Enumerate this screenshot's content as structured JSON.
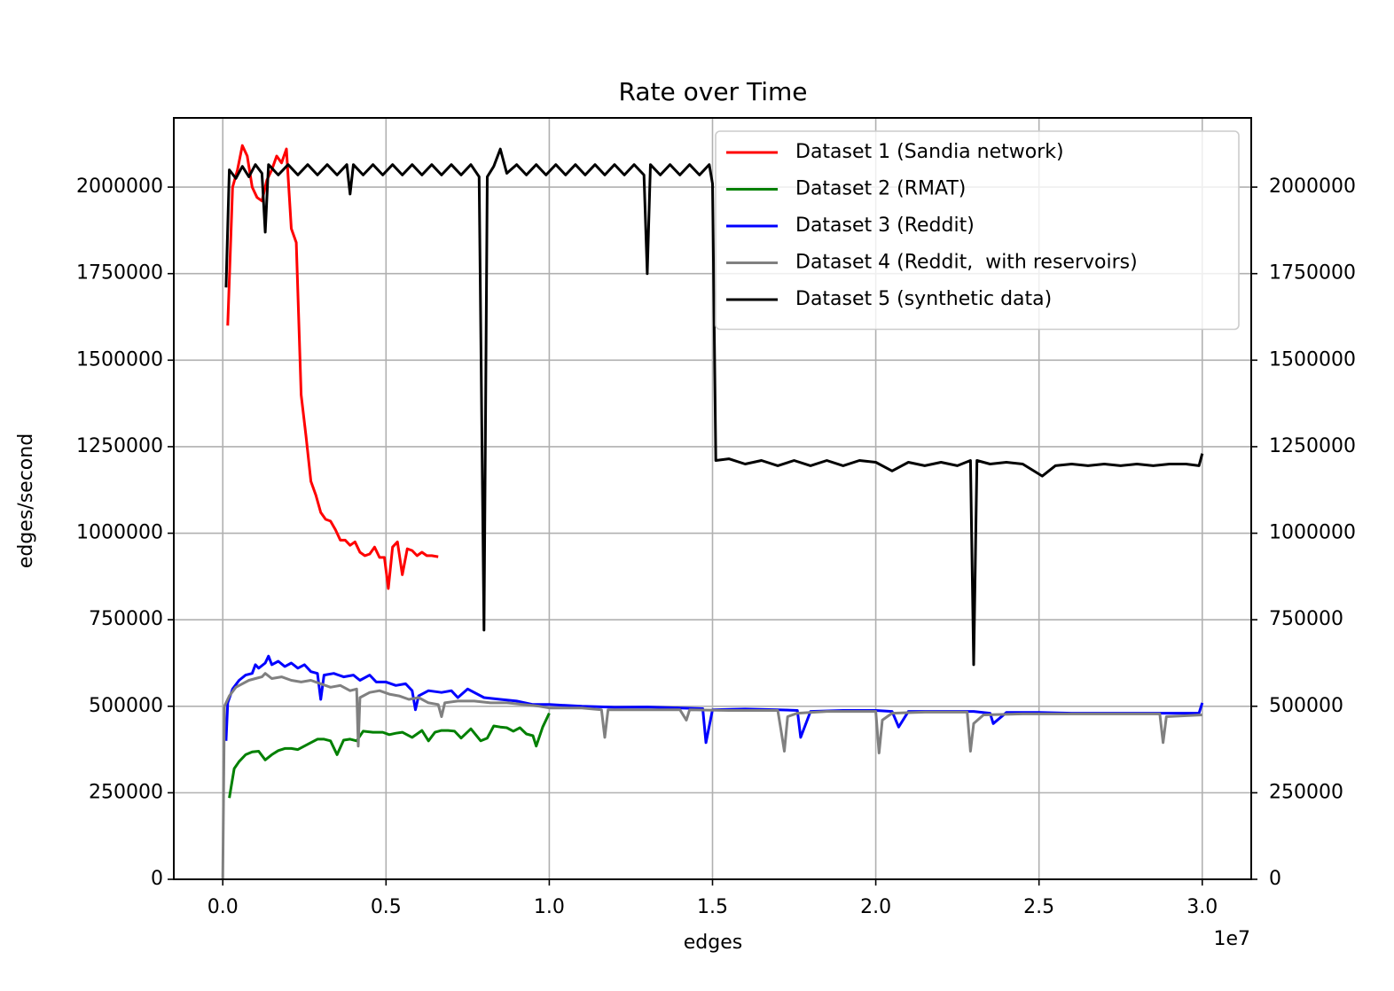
{
  "chart_data": {
    "type": "line",
    "title": "Rate over Time",
    "xlabel": "edges",
    "ylabel": "edges/second",
    "x_offset_label": "1e7",
    "xlim": [
      -1500000,
      31500000
    ],
    "xticks": [
      {
        "value": 0,
        "label": "0.0"
      },
      {
        "value": 5000000,
        "label": "0.5"
      },
      {
        "value": 10000000,
        "label": "1.0"
      },
      {
        "value": 15000000,
        "label": "1.5"
      },
      {
        "value": 20000000,
        "label": "2.0"
      },
      {
        "value": 25000000,
        "label": "2.5"
      },
      {
        "value": 30000000,
        "label": "3.0"
      }
    ],
    "ylim": [
      0,
      2200000
    ],
    "yticks": [
      0,
      250000,
      500000,
      750000,
      1000000,
      1250000,
      1500000,
      1750000,
      2000000
    ],
    "y2lim": [
      0,
      2200000
    ],
    "y2ticks": [
      0,
      250000,
      500000,
      750000,
      1000000,
      1250000,
      1500000,
      1750000,
      2000000
    ],
    "grid": true,
    "legend": "upper right",
    "series": [
      {
        "name": "Dataset 1 (Sandia network)",
        "color": "#ff0000",
        "x": [
          150000,
          300000,
          450000,
          600000,
          750000,
          900000,
          1050000,
          1200000,
          1350000,
          1500000,
          1650000,
          1800000,
          1950000,
          2100000,
          2250000,
          2400000,
          2550000,
          2700000,
          2850000,
          3000000,
          3150000,
          3300000,
          3450000,
          3600000,
          3750000,
          3900000,
          4050000,
          4200000,
          4350000,
          4500000,
          4650000,
          4800000,
          4950000,
          5070000,
          5200000,
          5350000,
          5500000,
          5650000,
          5800000,
          5950000,
          6100000,
          6250000,
          6400000,
          6600000
        ],
        "values": [
          1600000,
          2000000,
          2050000,
          2120000,
          2090000,
          2000000,
          1970000,
          1960000,
          2020000,
          2050000,
          2090000,
          2070000,
          2110000,
          1880000,
          1840000,
          1400000,
          1280000,
          1150000,
          1110000,
          1060000,
          1040000,
          1035000,
          1010000,
          980000,
          980000,
          965000,
          975000,
          945000,
          935000,
          940000,
          960000,
          930000,
          930000,
          840000,
          960000,
          975000,
          880000,
          955000,
          950000,
          935000,
          945000,
          935000,
          935000,
          932000
        ]
      },
      {
        "name": "Dataset 2 (RMAT)",
        "color": "#008000",
        "x": [
          200000,
          350000,
          500000,
          700000,
          900000,
          1100000,
          1300000,
          1500000,
          1700000,
          1900000,
          2100000,
          2300000,
          2600000,
          2900000,
          3100000,
          3300000,
          3500000,
          3700000,
          3900000,
          4100000,
          4300000,
          4600000,
          4900000,
          5100000,
          5300000,
          5500000,
          5800000,
          6100000,
          6300000,
          6500000,
          6700000,
          6900000,
          7100000,
          7300000,
          7600000,
          7900000,
          8100000,
          8300000,
          8500000,
          8700000,
          8900000,
          9100000,
          9300000,
          9500000,
          9600000,
          9800000,
          10000000
        ],
        "values": [
          235000,
          320000,
          340000,
          360000,
          368000,
          370000,
          345000,
          360000,
          372000,
          378000,
          378000,
          375000,
          390000,
          405000,
          405000,
          400000,
          360000,
          402000,
          405000,
          400000,
          428000,
          425000,
          425000,
          418000,
          422000,
          425000,
          410000,
          430000,
          400000,
          425000,
          430000,
          430000,
          428000,
          408000,
          435000,
          400000,
          408000,
          443000,
          440000,
          438000,
          428000,
          438000,
          420000,
          415000,
          385000,
          440000,
          480000
        ]
      },
      {
        "name": "Dataset 3 (Reddit)",
        "color": "#0000ff",
        "x": [
          100000,
          150000,
          300000,
          500000,
          700000,
          900000,
          1000000,
          1100000,
          1300000,
          1400000,
          1500000,
          1700000,
          1900000,
          2100000,
          2300000,
          2500000,
          2700000,
          2900000,
          3000000,
          3100000,
          3400000,
          3700000,
          4000000,
          4200000,
          4500000,
          4700000,
          5000000,
          5300000,
          5600000,
          5800000,
          5900000,
          6000000,
          6300000,
          6700000,
          7000000,
          7200000,
          7500000,
          8000000,
          8500000,
          9000000,
          9500000,
          10000000,
          11000000,
          12000000,
          13000000,
          14000000,
          14700000,
          14800000,
          15000000,
          16000000,
          17000000,
          17600000,
          17700000,
          18000000,
          19000000,
          20000000,
          20500000,
          20700000,
          21000000,
          22000000,
          23000000,
          23500000,
          23600000,
          24000000,
          25000000,
          26000000,
          27000000,
          28000000,
          29000000,
          29900000,
          30000000
        ],
        "values": [
          400000,
          510000,
          550000,
          575000,
          590000,
          595000,
          620000,
          610000,
          625000,
          645000,
          620000,
          630000,
          615000,
          625000,
          610000,
          620000,
          600000,
          595000,
          520000,
          590000,
          595000,
          585000,
          590000,
          575000,
          590000,
          570000,
          570000,
          560000,
          565000,
          545000,
          490000,
          530000,
          545000,
          540000,
          545000,
          525000,
          550000,
          525000,
          520000,
          515000,
          505000,
          505000,
          500000,
          497000,
          498000,
          495000,
          493000,
          395000,
          490000,
          492000,
          490000,
          488000,
          410000,
          485000,
          488000,
          488000,
          485000,
          440000,
          485000,
          485000,
          485000,
          480000,
          450000,
          482000,
          482000,
          480000,
          480000,
          480000,
          480000,
          480000,
          510000
        ]
      },
      {
        "name": "Dataset 4 (Reddit,  with reservoirs)",
        "color": "#808080",
        "x": [
          0,
          50000,
          200000,
          400000,
          600000,
          800000,
          1000000,
          1200000,
          1300000,
          1500000,
          1800000,
          2100000,
          2400000,
          2700000,
          3000000,
          3300000,
          3600000,
          3900000,
          4100000,
          4150000,
          4200000,
          4500000,
          4800000,
          5100000,
          5400000,
          5700000,
          6000000,
          6300000,
          6600000,
          6700000,
          6800000,
          7200000,
          7700000,
          8200000,
          8700000,
          9200000,
          9700000,
          10000000,
          11000000,
          11600000,
          11700000,
          11800000,
          13000000,
          14000000,
          14200000,
          14300000,
          15500000,
          17000000,
          17100000,
          17200000,
          17300000,
          17600000,
          18500000,
          19500000,
          20000000,
          20100000,
          20200000,
          20500000,
          21500000,
          22800000,
          22900000,
          23000000,
          23300000,
          24500000,
          26000000,
          27500000,
          28700000,
          28800000,
          28900000,
          30000000
        ],
        "values": [
          0,
          500000,
          530000,
          555000,
          565000,
          575000,
          580000,
          585000,
          595000,
          580000,
          585000,
          575000,
          570000,
          575000,
          565000,
          555000,
          560000,
          545000,
          550000,
          385000,
          525000,
          540000,
          545000,
          535000,
          530000,
          520000,
          525000,
          510000,
          505000,
          470000,
          510000,
          515000,
          515000,
          510000,
          510000,
          505000,
          500000,
          495000,
          495000,
          490000,
          410000,
          490000,
          490000,
          490000,
          460000,
          490000,
          488000,
          488000,
          430000,
          370000,
          470000,
          480000,
          485000,
          485000,
          485000,
          365000,
          460000,
          480000,
          483000,
          483000,
          370000,
          450000,
          475000,
          478000,
          478000,
          478000,
          478000,
          395000,
          470000,
          475000
        ]
      },
      {
        "name": "Dataset 5 (synthetic data)",
        "color": "#000000",
        "x": [
          100000,
          200000,
          400000,
          600000,
          800000,
          1000000,
          1200000,
          1300000,
          1400000,
          1700000,
          2000000,
          2300000,
          2600000,
          2900000,
          3200000,
          3500000,
          3800000,
          3900000,
          4000000,
          4300000,
          4600000,
          4900000,
          5200000,
          5500000,
          5800000,
          6100000,
          6400000,
          6700000,
          7000000,
          7300000,
          7600000,
          7850000,
          8000000,
          8100000,
          8300000,
          8500000,
          8700000,
          9000000,
          9300000,
          9600000,
          9900000,
          10200000,
          10500000,
          10800000,
          11100000,
          11400000,
          11700000,
          12000000,
          12300000,
          12600000,
          12900000,
          13000000,
          13100000,
          13400000,
          13700000,
          14000000,
          14300000,
          14600000,
          14900000,
          15000000,
          15100000,
          15500000,
          16000000,
          16500000,
          17000000,
          17500000,
          18000000,
          18500000,
          19000000,
          19500000,
          20000000,
          20500000,
          21000000,
          21500000,
          22000000,
          22500000,
          22900000,
          23000000,
          23100000,
          23500000,
          24000000,
          24500000,
          25100000,
          25500000,
          26000000,
          26500000,
          27000000,
          27500000,
          28000000,
          28500000,
          29000000,
          29500000,
          29900000,
          30000000
        ],
        "values": [
          1710000,
          2050000,
          2025000,
          2060000,
          2030000,
          2065000,
          2040000,
          1870000,
          2065000,
          2035000,
          2065000,
          2035000,
          2065000,
          2035000,
          2065000,
          2035000,
          2065000,
          1980000,
          2065000,
          2035000,
          2065000,
          2035000,
          2065000,
          2035000,
          2065000,
          2035000,
          2065000,
          2035000,
          2065000,
          2035000,
          2065000,
          2030000,
          720000,
          2030000,
          2060000,
          2110000,
          2040000,
          2065000,
          2035000,
          2065000,
          2035000,
          2065000,
          2035000,
          2065000,
          2035000,
          2065000,
          2035000,
          2065000,
          2035000,
          2065000,
          2035000,
          1750000,
          2065000,
          2035000,
          2065000,
          2035000,
          2065000,
          2035000,
          2065000,
          2010000,
          1210000,
          1215000,
          1200000,
          1210000,
          1195000,
          1210000,
          1195000,
          1210000,
          1195000,
          1210000,
          1205000,
          1180000,
          1205000,
          1195000,
          1205000,
          1195000,
          1210000,
          620000,
          1210000,
          1200000,
          1205000,
          1200000,
          1165000,
          1195000,
          1200000,
          1195000,
          1200000,
          1195000,
          1200000,
          1195000,
          1200000,
          1200000,
          1195000,
          1230000
        ]
      }
    ]
  }
}
